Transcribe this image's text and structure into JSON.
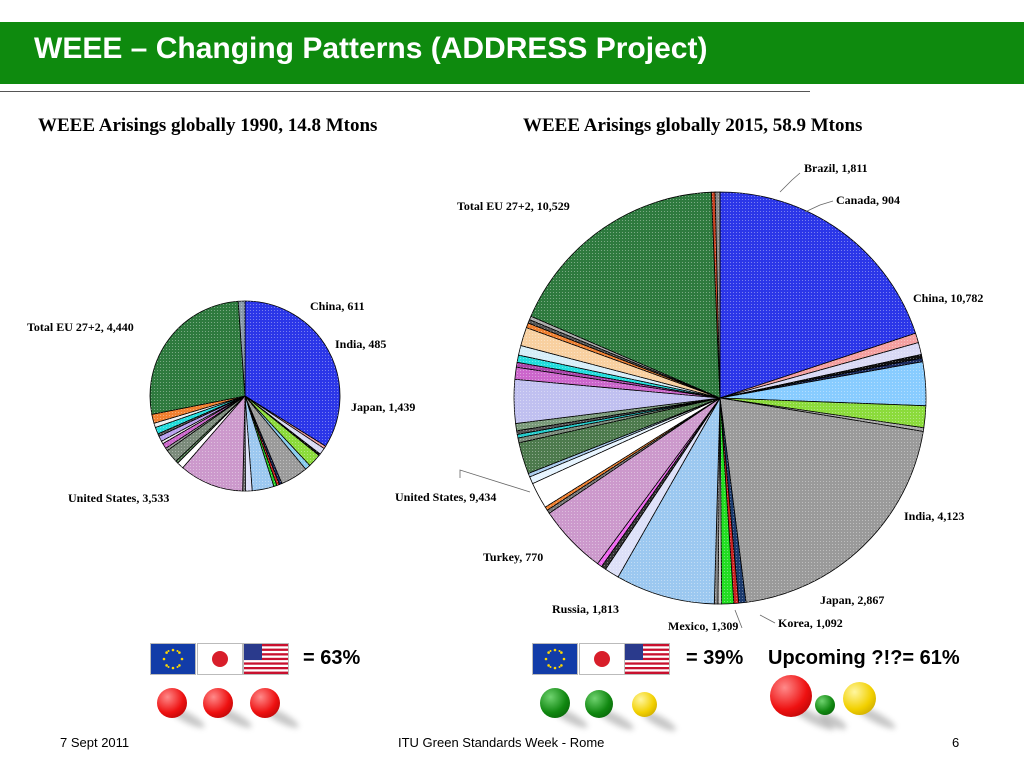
{
  "slide": {
    "title": "WEEE – Changing Patterns (ADDRESS Project)",
    "title_bar_color": "#0e8a0e",
    "footer_date": "7 Sept 2011",
    "footer_center": "ITU Green Standards Week - Rome",
    "page_number": "6"
  },
  "chart_data": [
    {
      "type": "pie",
      "title": "WEEE Arisings globally 1990, 14.8 Mtons",
      "labeled_slices": [
        {
          "label": "Total EU 27+2,  4,440",
          "value": 4440
        },
        {
          "label": "China,  611",
          "value": 611
        },
        {
          "label": "India,  485",
          "value": 485
        },
        {
          "label": "Japan,  1,439",
          "value": 1439
        },
        {
          "label": "United States,  3,533",
          "value": 3533
        }
      ],
      "slices": [
        {
          "value": 4440,
          "color": "#2b36e8"
        },
        {
          "value": 60,
          "color": "#f4a0a0"
        },
        {
          "value": 150,
          "color": "#d9d9f4"
        },
        {
          "value": 40,
          "color": "#111111"
        },
        {
          "value": 300,
          "color": "#8bdb3b"
        },
        {
          "value": 120,
          "color": "#88ccee"
        },
        {
          "value": 611,
          "color": "#9a9a9a"
        },
        {
          "value": 60,
          "color": "#1b2a5e"
        },
        {
          "value": 60,
          "color": "#cc2222"
        },
        {
          "value": 70,
          "color": "#22cc22"
        },
        {
          "value": 485,
          "color": "#9cc8f0"
        },
        {
          "value": 150,
          "color": "#dde0f8"
        },
        {
          "value": 60,
          "color": "#777777"
        },
        {
          "value": 1439,
          "color": "#cc99cc"
        },
        {
          "value": 150,
          "color": "#ffffff"
        },
        {
          "value": 60,
          "color": "#4d7a4d"
        },
        {
          "value": 300,
          "color": "#7a8a7a"
        },
        {
          "value": 60,
          "color": "#999999"
        },
        {
          "value": 120,
          "color": "#cc66cc"
        },
        {
          "value": 60,
          "color": "#eeeeee"
        },
        {
          "value": 120,
          "color": "#b8a0ee"
        },
        {
          "value": 60,
          "color": "#555555"
        },
        {
          "value": 150,
          "color": "#22dddd"
        },
        {
          "value": 100,
          "color": "#eeeeee"
        },
        {
          "value": 200,
          "color": "#f08030"
        },
        {
          "value": 3533,
          "color": "#2e7a3e"
        },
        {
          "value": 150,
          "color": "#8899aa"
        }
      ]
    },
    {
      "type": "pie",
      "title": "WEEE Arisings globally 2015, 58.9 Mtons",
      "labeled_slices": [
        {
          "label": "Total EU 27+2,  10,529",
          "value": 10529
        },
        {
          "label": "Brazil,  1,811",
          "value": 1811
        },
        {
          "label": "Canada,  904",
          "value": 904
        },
        {
          "label": "China,  10,782",
          "value": 10782
        },
        {
          "label": "India,  4,123",
          "value": 4123
        },
        {
          "label": "Japan,  2,867",
          "value": 2867
        },
        {
          "label": "Korea,  1,092",
          "value": 1092
        },
        {
          "label": "Mexico,  1,309",
          "value": 1309
        },
        {
          "label": "Russia,  1,813",
          "value": 1813
        },
        {
          "label": "Turkey,  770",
          "value": 770
        },
        {
          "label": "United States,  9,434",
          "value": 9434
        }
      ],
      "slices": [
        {
          "value": 10529,
          "color": "#2b36e8"
        },
        {
          "value": 400,
          "color": "#f4a0a0"
        },
        {
          "value": 500,
          "color": "#d9d9f4"
        },
        {
          "value": 150,
          "color": "#111111"
        },
        {
          "value": 150,
          "color": "#1b2a5e"
        },
        {
          "value": 1811,
          "color": "#88ccff"
        },
        {
          "value": 904,
          "color": "#8bdb3b"
        },
        {
          "value": 150,
          "color": "#aaaaaa"
        },
        {
          "value": 10782,
          "color": "#9a9a9a"
        },
        {
          "value": 300,
          "color": "#1b3a6e"
        },
        {
          "value": 200,
          "color": "#cc2222"
        },
        {
          "value": 500,
          "color": "#22dd22"
        },
        {
          "value": 150,
          "color": "#cccccc"
        },
        {
          "value": 150,
          "color": "#888888"
        },
        {
          "value": 4123,
          "color": "#9cc8f0"
        },
        {
          "value": 600,
          "color": "#dde0f8"
        },
        {
          "value": 200,
          "color": "#333333"
        },
        {
          "value": 200,
          "color": "#ee66ee"
        },
        {
          "value": 2867,
          "color": "#cc99cc"
        },
        {
          "value": 150,
          "color": "#777777"
        },
        {
          "value": 150,
          "color": "#f08030"
        },
        {
          "value": 1092,
          "color": "#ffffff"
        },
        {
          "value": 300,
          "color": "#e6f4ff"
        },
        {
          "value": 150,
          "color": "#aaccee"
        },
        {
          "value": 1309,
          "color": "#4d7a4d"
        },
        {
          "value": 200,
          "color": "#7a8a7a"
        },
        {
          "value": 150,
          "color": "#22cccc"
        },
        {
          "value": 150,
          "color": "#555555"
        },
        {
          "value": 300,
          "color": "#7a9a7a"
        },
        {
          "value": 1813,
          "color": "#c0c0f0"
        },
        {
          "value": 500,
          "color": "#cc66cc"
        },
        {
          "value": 200,
          "color": "#aa44aa"
        },
        {
          "value": 300,
          "color": "#22dddd"
        },
        {
          "value": 400,
          "color": "#d6eef8"
        },
        {
          "value": 770,
          "color": "#f8d0a0"
        },
        {
          "value": 200,
          "color": "#f08030"
        },
        {
          "value": 150,
          "color": "#555555"
        },
        {
          "value": 150,
          "color": "#aaaaaa"
        },
        {
          "value": 9434,
          "color": "#2e7a3e"
        },
        {
          "value": 150,
          "color": "#cc4422"
        },
        {
          "value": 200,
          "color": "#888888"
        }
      ]
    }
  ],
  "groups": [
    {
      "flags": [
        {
          "icon": "eu-flag-icon"
        },
        {
          "icon": "japan-flag-icon"
        },
        {
          "icon": "us-flag-icon"
        }
      ],
      "share_text": "= 63%",
      "lights": [
        {
          "icon": "red-light-icon",
          "color": "#ee1111"
        },
        {
          "icon": "red-light-icon",
          "color": "#ee1111"
        },
        {
          "icon": "red-light-icon",
          "color": "#ee1111"
        }
      ]
    },
    {
      "flags": [
        {
          "icon": "eu-flag-icon"
        },
        {
          "icon": "japan-flag-icon"
        },
        {
          "icon": "us-flag-icon"
        }
      ],
      "share_text": "= 39%",
      "lights": [
        {
          "icon": "green-light-icon",
          "color": "#118811"
        },
        {
          "icon": "green-light-icon",
          "color": "#118811"
        },
        {
          "icon": "yellow-light-icon",
          "color": "#f2d000"
        }
      ]
    },
    {
      "share_text": "Upcoming ?!?= 61%",
      "lights": [
        {
          "icon": "red-light-icon",
          "color": "#ee1111"
        },
        {
          "icon": "green-light-icon",
          "color": "#118811"
        },
        {
          "icon": "yellow-light-icon",
          "color": "#f2d000"
        }
      ]
    }
  ]
}
